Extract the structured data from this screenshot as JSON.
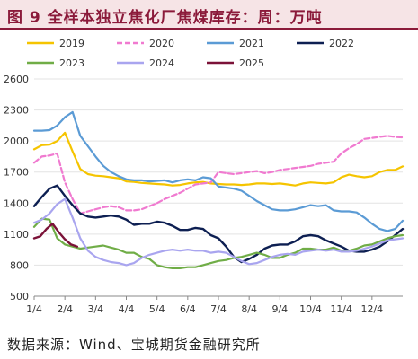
{
  "title": "图 9 全样本独立焦化厂焦煤库存：周：万吨",
  "source": "数据来源：Wind、宝城期货金融研究所",
  "chart_data": {
    "type": "line",
    "x_ticks": [
      "1/4",
      "2/4",
      "3/4",
      "4/4",
      "5/4",
      "6/4",
      "7/4",
      "8/4",
      "9/4",
      "10/4",
      "11/4",
      "12/4"
    ],
    "ylim": [
      500,
      2600
    ],
    "yticks": [
      500,
      800,
      1100,
      1400,
      1700,
      2000,
      2300,
      2600
    ],
    "legend_position": "top",
    "series": [
      {
        "name": "2019",
        "color": "#f5c400",
        "dash": "",
        "width": 2.2,
        "x": [
          1,
          1.25,
          1.5,
          1.75,
          2,
          2.25,
          2.5,
          2.75,
          3,
          3.25,
          3.5,
          3.75,
          4,
          4.25,
          4.5,
          4.75,
          5,
          5.25,
          5.5,
          5.75,
          6,
          6.25,
          6.5,
          6.75,
          7,
          7.25,
          7.5,
          7.75,
          8,
          8.25,
          8.5,
          8.75,
          9,
          9.25,
          9.5,
          9.75,
          10,
          10.25,
          10.5,
          10.75,
          11,
          11.25,
          11.5,
          11.75,
          12,
          12.25,
          12.5,
          12.75,
          13
        ],
        "y": [
          1920,
          1960,
          1965,
          2000,
          2080,
          1900,
          1730,
          1680,
          1665,
          1660,
          1650,
          1640,
          1610,
          1605,
          1595,
          1590,
          1585,
          1580,
          1570,
          1575,
          1590,
          1600,
          1605,
          1590,
          1585,
          1580,
          1580,
          1575,
          1580,
          1590,
          1590,
          1585,
          1590,
          1580,
          1570,
          1590,
          1600,
          1595,
          1590,
          1600,
          1650,
          1675,
          1660,
          1650,
          1660,
          1700,
          1720,
          1720,
          1755
        ]
      },
      {
        "name": "2020",
        "color": "#f07ad0",
        "dash": "6,3",
        "width": 2.2,
        "x": [
          1,
          1.25,
          1.5,
          1.75,
          2,
          2.25,
          2.5,
          2.75,
          3,
          3.25,
          3.5,
          3.75,
          4,
          4.25,
          4.5,
          4.75,
          5,
          5.25,
          5.5,
          5.75,
          6,
          6.25,
          6.5,
          6.75,
          7,
          7.25,
          7.5,
          7.75,
          8,
          8.25,
          8.5,
          8.75,
          9,
          9.25,
          9.5,
          9.75,
          10,
          10.25,
          10.5,
          10.75,
          11,
          11.25,
          11.5,
          11.75,
          12,
          12.25,
          12.5,
          12.75,
          13
        ],
        "y": [
          1790,
          1850,
          1860,
          1880,
          1600,
          1440,
          1300,
          1320,
          1340,
          1360,
          1370,
          1360,
          1330,
          1330,
          1340,
          1370,
          1400,
          1440,
          1470,
          1500,
          1540,
          1580,
          1590,
          1600,
          1700,
          1690,
          1680,
          1690,
          1700,
          1710,
          1690,
          1700,
          1720,
          1730,
          1740,
          1750,
          1760,
          1780,
          1790,
          1800,
          1880,
          1930,
          1970,
          2020,
          2030,
          2040,
          2050,
          2040,
          2035
        ]
      },
      {
        "name": "2021",
        "color": "#5b9bd5",
        "dash": "",
        "width": 2.2,
        "x": [
          1,
          1.25,
          1.5,
          1.75,
          2,
          2.25,
          2.5,
          2.75,
          3,
          3.25,
          3.5,
          3.75,
          4,
          4.25,
          4.5,
          4.75,
          5,
          5.25,
          5.5,
          5.75,
          6,
          6.25,
          6.5,
          6.75,
          7,
          7.25,
          7.5,
          7.75,
          8,
          8.25,
          8.5,
          8.75,
          9,
          9.25,
          9.5,
          9.75,
          10,
          10.25,
          10.5,
          10.75,
          11,
          11.25,
          11.5,
          11.75,
          12,
          12.25,
          12.5,
          12.75,
          13
        ],
        "y": [
          2100,
          2100,
          2105,
          2150,
          2230,
          2280,
          2050,
          1950,
          1850,
          1760,
          1700,
          1660,
          1630,
          1620,
          1620,
          1610,
          1615,
          1620,
          1600,
          1620,
          1630,
          1620,
          1650,
          1640,
          1560,
          1550,
          1540,
          1520,
          1470,
          1420,
          1380,
          1340,
          1330,
          1330,
          1340,
          1360,
          1380,
          1370,
          1380,
          1330,
          1320,
          1320,
          1310,
          1260,
          1200,
          1150,
          1130,
          1150,
          1230
        ]
      },
      {
        "name": "2022",
        "color": "#0d1f52",
        "dash": "",
        "width": 2.4,
        "x": [
          1,
          1.25,
          1.5,
          1.75,
          2,
          2.25,
          2.5,
          2.75,
          3,
          3.25,
          3.5,
          3.75,
          4,
          4.25,
          4.5,
          4.75,
          5,
          5.25,
          5.5,
          5.75,
          6,
          6.25,
          6.5,
          6.75,
          7,
          7.25,
          7.5,
          7.75,
          8,
          8.25,
          8.5,
          8.75,
          9,
          9.25,
          9.5,
          9.75,
          10,
          10.25,
          10.5,
          10.75,
          11,
          11.25,
          11.5,
          11.75,
          12,
          12.25,
          12.5,
          12.75,
          13
        ],
        "y": [
          1370,
          1460,
          1540,
          1570,
          1470,
          1380,
          1300,
          1270,
          1260,
          1270,
          1280,
          1270,
          1240,
          1190,
          1200,
          1200,
          1220,
          1210,
          1180,
          1140,
          1140,
          1160,
          1150,
          1090,
          1060,
          980,
          880,
          830,
          860,
          900,
          960,
          990,
          1000,
          1000,
          1030,
          1080,
          1090,
          1080,
          1040,
          1010,
          980,
          940,
          930,
          930,
          950,
          980,
          1030,
          1090,
          1150
        ]
      },
      {
        "name": "2023",
        "color": "#70ad47",
        "dash": "",
        "width": 2.2,
        "x": [
          1,
          1.25,
          1.5,
          1.75,
          2,
          2.25,
          2.5,
          2.75,
          3,
          3.25,
          3.5,
          3.75,
          4,
          4.25,
          4.5,
          4.75,
          5,
          5.25,
          5.5,
          5.75,
          6,
          6.25,
          6.5,
          6.75,
          7,
          7.25,
          7.5,
          7.75,
          8,
          8.25,
          8.5,
          8.75,
          9,
          9.25,
          9.5,
          9.75,
          10,
          10.25,
          10.5,
          10.75,
          11,
          11.25,
          11.5,
          11.75,
          12,
          12.25,
          12.5,
          12.75,
          13
        ],
        "y": [
          1170,
          1250,
          1240,
          1060,
          1000,
          980,
          960,
          970,
          980,
          990,
          970,
          950,
          920,
          920,
          880,
          860,
          800,
          780,
          770,
          770,
          780,
          780,
          800,
          820,
          840,
          850,
          870,
          880,
          900,
          920,
          900,
          870,
          870,
          900,
          920,
          960,
          960,
          950,
          950,
          970,
          940,
          940,
          960,
          990,
          1000,
          1030,
          1060,
          1080,
          1090
        ]
      },
      {
        "name": "2024",
        "color": "#a9a5ef",
        "dash": "",
        "width": 2.2,
        "x": [
          1,
          1.25,
          1.5,
          1.75,
          2,
          2.25,
          2.5,
          2.75,
          3,
          3.25,
          3.5,
          3.75,
          4,
          4.25,
          4.5,
          4.75,
          5,
          5.25,
          5.5,
          5.75,
          6,
          6.25,
          6.5,
          6.75,
          7,
          7.25,
          7.5,
          7.75,
          8,
          8.25,
          8.5,
          8.75,
          9,
          9.25,
          9.5,
          9.75,
          10,
          10.25,
          10.5,
          10.75,
          11,
          11.25,
          11.5,
          11.75,
          12,
          12.25,
          12.5,
          12.75,
          13
        ],
        "y": [
          1210,
          1240,
          1300,
          1390,
          1440,
          1260,
          1060,
          940,
          880,
          850,
          830,
          820,
          800,
          820,
          870,
          900,
          920,
          940,
          950,
          940,
          950,
          940,
          940,
          920,
          930,
          920,
          880,
          840,
          810,
          820,
          850,
          880,
          900,
          910,
          900,
          930,
          940,
          950,
          940,
          950,
          930,
          930,
          940,
          960,
          980,
          1010,
          1040,
          1050,
          1060
        ]
      },
      {
        "name": "2025",
        "color": "#7b1238",
        "dash": "",
        "width": 2.4,
        "x": [
          1,
          1.2,
          1.4,
          1.6,
          1.8,
          2,
          2.2,
          2.4
        ],
        "y": [
          1060,
          1080,
          1150,
          1200,
          1120,
          1050,
          1000,
          980
        ]
      }
    ]
  }
}
